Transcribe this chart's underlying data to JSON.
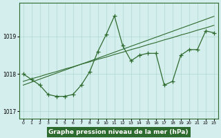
{
  "x": [
    0,
    1,
    2,
    3,
    4,
    5,
    6,
    7,
    8,
    9,
    10,
    11,
    12,
    13,
    14,
    15,
    16,
    17,
    18,
    19,
    20,
    21,
    22,
    23
  ],
  "y_main": [
    1018.0,
    1017.85,
    1017.7,
    1017.45,
    1017.4,
    1017.4,
    1017.45,
    1017.7,
    1018.05,
    1018.6,
    1019.05,
    1019.55,
    1018.75,
    1018.35,
    1018.5,
    1018.55,
    1018.55,
    1017.7,
    1017.8,
    1018.5,
    1018.65,
    1018.65,
    1019.15,
    1019.1
  ],
  "y_trend1": [
    1017.7,
    1017.78,
    1017.86,
    1017.94,
    1018.02,
    1018.1,
    1018.18,
    1018.26,
    1018.34,
    1018.42,
    1018.5,
    1018.58,
    1018.66,
    1018.74,
    1018.82,
    1018.9,
    1018.98,
    1019.06,
    1019.14,
    1019.22,
    1019.3,
    1019.38,
    1019.46,
    1019.54
  ],
  "y_trend2": [
    1017.8,
    1017.87,
    1017.93,
    1018.0,
    1018.06,
    1018.13,
    1018.19,
    1018.26,
    1018.32,
    1018.39,
    1018.45,
    1018.52,
    1018.58,
    1018.65,
    1018.71,
    1018.78,
    1018.84,
    1018.91,
    1018.97,
    1019.04,
    1019.1,
    1019.17,
    1019.23,
    1019.3
  ],
  "ylim": [
    1016.8,
    1019.9
  ],
  "yticks": [
    1017,
    1018,
    1019
  ],
  "xticks": [
    0,
    1,
    2,
    3,
    4,
    5,
    6,
    7,
    8,
    9,
    10,
    11,
    12,
    13,
    14,
    15,
    16,
    17,
    18,
    19,
    20,
    21,
    22,
    23
  ],
  "xlabel": "Graphe pression niveau de la mer (hPa)",
  "line_color": "#2d6a2d",
  "bg_color": "#d4eeed",
  "grid_color": "#b0d8d0",
  "title_bg": "#2d6a2d",
  "title_fg": "#ffffff"
}
